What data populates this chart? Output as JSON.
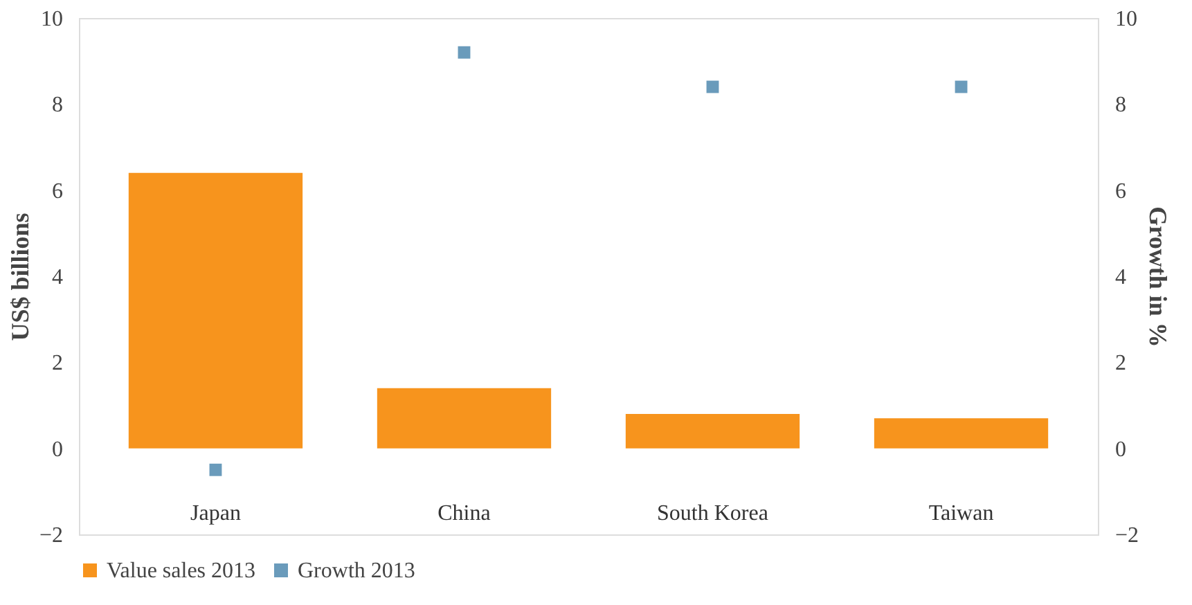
{
  "chart_data": {
    "type": "bar",
    "categories": [
      "Japan",
      "China",
      "South Korea",
      "Taiwan"
    ],
    "series": [
      {
        "name": "Value sales 2013",
        "color": "#f7941d",
        "values": [
          6.4,
          1.4,
          0.8,
          0.7
        ]
      },
      {
        "name": "Growth 2013",
        "color": "#6a9bbb",
        "type": "scatter",
        "axis": "y2",
        "marker": "square",
        "values": [
          -0.5,
          9.2,
          8.4,
          8.4
        ]
      }
    ],
    "ylabel": "US$ billions",
    "y2label": "Growth in %",
    "ylim": [
      -2,
      10
    ],
    "yticks": [
      -2,
      0,
      2,
      4,
      6,
      8,
      10
    ],
    "y2lim": [
      -2,
      10
    ],
    "y2ticks": [
      -2,
      0,
      2,
      4,
      6,
      8,
      10
    ],
    "grid": false,
    "legend": "bottom"
  }
}
